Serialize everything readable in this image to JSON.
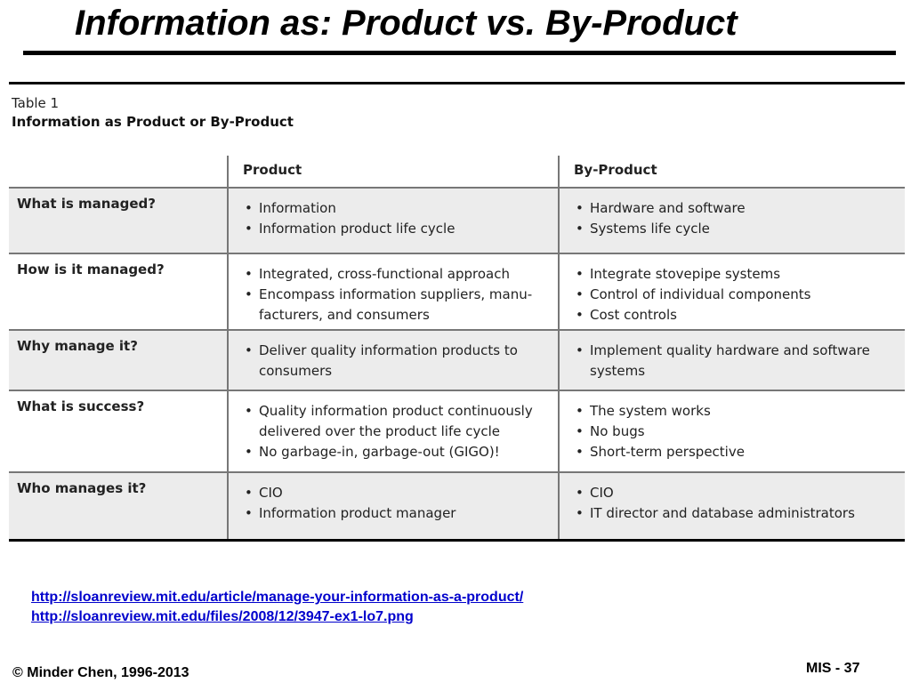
{
  "slide": {
    "title": "Information as: Product vs. By-Product"
  },
  "table": {
    "caption": "Table 1",
    "subcaption": "Information as Product or By-Product",
    "columns": [
      "",
      "Product",
      "By-Product"
    ],
    "rows": [
      {
        "question": "What is managed?",
        "product": [
          "Information",
          "Information product life cycle"
        ],
        "byproduct": [
          "Hardware and software",
          "Systems life cycle"
        ]
      },
      {
        "question": "How is it managed?",
        "product": [
          "Integrated, cross-functional approach",
          "Encompass information suppliers, manu-facturers, and consumers"
        ],
        "byproduct": [
          "Integrate stovepipe systems",
          "Control of individual components",
          "Cost controls"
        ]
      },
      {
        "question": "Why manage it?",
        "product": [
          "Deliver quality information products to consumers"
        ],
        "byproduct": [
          "Implement quality hardware and software systems"
        ]
      },
      {
        "question": "What is success?",
        "product": [
          "Quality information product continuously delivered over the product life cycle",
          "No garbage-in, garbage-out (GIGO)!"
        ],
        "byproduct": [
          "The system works",
          "No bugs",
          "Short-term perspective"
        ]
      },
      {
        "question": "Who manages it?",
        "product": [
          "CIO",
          "Information product manager"
        ],
        "byproduct": [
          "CIO",
          "IT director and database administrators"
        ]
      }
    ]
  },
  "links": [
    "http://sloanreview.mit.edu/article/manage-your-information-as-a-product/",
    "http://sloanreview.mit.edu/files/2008/12/3947-ex1-lo7.png"
  ],
  "footer": {
    "copyright": "© Minder Chen, 1996-2013",
    "page": "MIS - 37"
  }
}
